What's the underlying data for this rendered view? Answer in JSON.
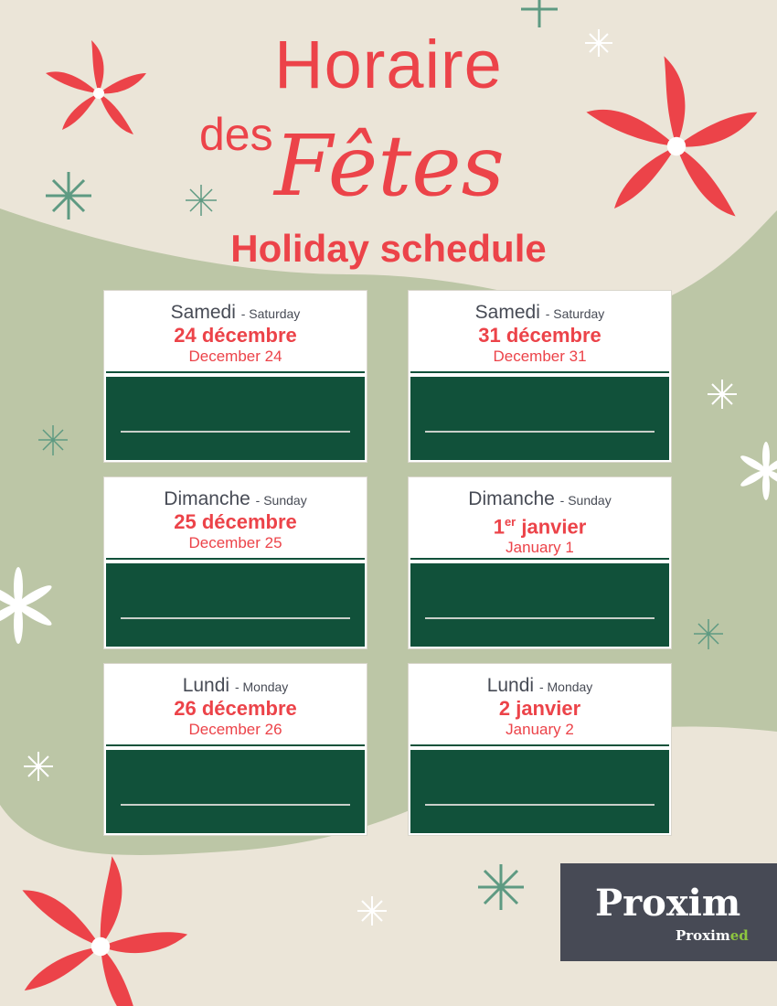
{
  "title": {
    "line1": "Horaire",
    "line2a": "des",
    "line2b": "Fêtes",
    "subtitle": "Holiday schedule"
  },
  "colors": {
    "accent": "#ec4349",
    "green": "#11513a",
    "background": "#ebe5d8",
    "blob": "#bcc6a6"
  },
  "days": [
    {
      "fr_day": "Samedi",
      "en_day": "- Saturday",
      "fr_date": "24 décembre",
      "fr_sup": "",
      "en_date": "December 24"
    },
    {
      "fr_day": "Samedi",
      "en_day": "- Saturday",
      "fr_date": "31 décembre",
      "fr_sup": "",
      "en_date": "December 31"
    },
    {
      "fr_day": "Dimanche",
      "en_day": "- Sunday",
      "fr_date": "25 décembre",
      "fr_sup": "",
      "en_date": "December 25"
    },
    {
      "fr_day": "Dimanche",
      "en_day": "- Sunday",
      "fr_date": " janvier",
      "fr_pre": "1",
      "fr_sup": "er",
      "en_date": "January 1"
    },
    {
      "fr_day": "Lundi",
      "en_day": "- Monday",
      "fr_date": "26 décembre",
      "fr_sup": "",
      "en_date": "December 26"
    },
    {
      "fr_day": "Lundi",
      "en_day": "- Monday",
      "fr_date": "2 janvier",
      "fr_sup": "",
      "en_date": "January 2"
    }
  ],
  "logo": {
    "brand": "Proxim",
    "sub_brand": "Proximed",
    "sub_a": "Pro",
    "sub_b": "xim",
    "sub_c": "ed"
  }
}
